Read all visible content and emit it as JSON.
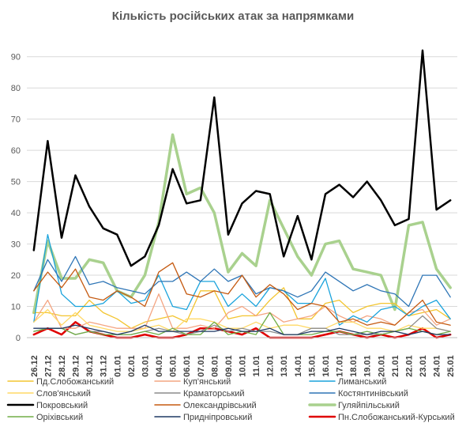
{
  "chart_data": {
    "type": "line",
    "title": "Кількість російських атак за напрямками",
    "xlabel": "",
    "ylabel": "",
    "ylim": [
      0,
      95
    ],
    "yticks": [
      0,
      10,
      20,
      30,
      40,
      50,
      60,
      70,
      80,
      90
    ],
    "grid": true,
    "legend_position": "bottom",
    "categories": [
      "26.12",
      "27.12",
      "28.12",
      "29.12",
      "30.12",
      "31.12",
      "01.01",
      "02.01",
      "03.01",
      "04.01",
      "05.01",
      "06.01",
      "07.01",
      "08.01",
      "09.01",
      "10.01",
      "11.01",
      "12.01",
      "13.01",
      "14.01",
      "15.01",
      "16.01",
      "17.01",
      "18.01",
      "19.01",
      "20.01",
      "21.01",
      "22.01",
      "23.01",
      "24.01",
      "25.01"
    ],
    "series": [
      {
        "name": "Пд.Слобожанський",
        "color": "#f3c530",
        "width": 1.3,
        "values": [
          8,
          8,
          7,
          7,
          12,
          8,
          6,
          3,
          5,
          6,
          7,
          5,
          15,
          15,
          6,
          7,
          7,
          12,
          16,
          6,
          6,
          11,
          12,
          8,
          10,
          11,
          11,
          7,
          8,
          9,
          6
        ]
      },
      {
        "name": "Куп'янський",
        "color": "#f4a582",
        "width": 1.3,
        "values": [
          5,
          12,
          3,
          3,
          5,
          4,
          3,
          3,
          3,
          14,
          3,
          3,
          4,
          3,
          8,
          10,
          7,
          8,
          5,
          6,
          7,
          10,
          7,
          5,
          7,
          6,
          4,
          8,
          9,
          4,
          6
        ]
      },
      {
        "name": "Лиманський",
        "color": "#1aa3dc",
        "width": 1.3,
        "values": [
          5,
          33,
          14,
          10,
          10,
          11,
          15,
          11,
          12,
          20,
          10,
          9,
          18,
          18,
          10,
          14,
          10,
          16,
          15,
          11,
          11,
          19,
          4,
          7,
          5,
          9,
          10,
          7,
          10,
          12,
          6
        ]
      },
      {
        "name": "Слов'янський",
        "color": "#ffd966",
        "width": 1.3,
        "values": [
          5,
          9,
          4,
          8,
          4,
          3,
          2,
          2,
          3,
          4,
          2,
          6,
          6,
          5,
          3,
          3,
          5,
          3,
          4,
          4,
          3,
          3,
          5,
          5,
          3,
          3,
          2,
          4,
          3,
          3,
          2
        ]
      },
      {
        "name": "Краматорський",
        "color": "#8c8c8c",
        "width": 1.3,
        "values": [
          2,
          3,
          3,
          1,
          2,
          2,
          1,
          1,
          2,
          3,
          2,
          1,
          2,
          4,
          2,
          3,
          2,
          2,
          1,
          1,
          3,
          3,
          1,
          1,
          1,
          1,
          2,
          3,
          7,
          3,
          2
        ]
      },
      {
        "name": "Костянтинівський",
        "color": "#2e75b6",
        "width": 1.3,
        "values": [
          15,
          25,
          18,
          26,
          17,
          18,
          16,
          15,
          14,
          18,
          18,
          21,
          18,
          22,
          18,
          20,
          14,
          16,
          15,
          13,
          15,
          21,
          18,
          15,
          17,
          15,
          14,
          10,
          20,
          20,
          13
        ]
      },
      {
        "name": "Покровський",
        "color": "#000000",
        "width": 2.5,
        "values": [
          28,
          63,
          32,
          52,
          42,
          35,
          33,
          23,
          26,
          36,
          54,
          43,
          44,
          77,
          33,
          43,
          47,
          46,
          26,
          39,
          25,
          46,
          49,
          45,
          50,
          44,
          36,
          38,
          92,
          41,
          44
        ]
      },
      {
        "name": "Олександрівський",
        "color": "#c55a11",
        "width": 1.3,
        "values": [
          15,
          21,
          16,
          22,
          13,
          12,
          15,
          13,
          10,
          21,
          24,
          14,
          13,
          15,
          14,
          20,
          13,
          17,
          14,
          9,
          11,
          10,
          5,
          6,
          4,
          5,
          4,
          8,
          12,
          5,
          4
        ]
      },
      {
        "name": "Гуляйпільський",
        "color": "#a9d18e",
        "width": 3.5,
        "values": [
          8,
          31,
          19,
          19,
          25,
          24,
          15,
          13,
          20,
          37,
          65,
          46,
          48,
          40,
          21,
          27,
          23,
          44,
          35,
          26,
          20,
          30,
          31,
          22,
          21,
          20,
          9,
          36,
          37,
          22,
          16
        ]
      },
      {
        "name": "Оріхівський",
        "color": "#70ad47",
        "width": 1.3,
        "values": [
          2,
          3,
          3,
          1,
          2,
          1,
          1,
          1,
          2,
          1,
          3,
          1,
          1,
          5,
          1,
          2,
          1,
          8,
          1,
          1,
          1,
          2,
          2,
          1,
          2,
          1,
          2,
          3,
          2,
          1,
          2
        ]
      },
      {
        "name": "Придніпровський",
        "color": "#1f3864",
        "width": 1.3,
        "values": [
          3,
          3,
          3,
          4,
          3,
          2,
          1,
          2,
          4,
          2,
          2,
          2,
          2,
          2,
          3,
          2,
          2,
          3,
          1,
          1,
          2,
          2,
          3,
          2,
          1,
          2,
          2,
          1,
          2,
          1,
          1
        ]
      },
      {
        "name": "Пн.Слобожанський-Курський",
        "color": "#e00000",
        "width": 2.5,
        "values": [
          1,
          3,
          1,
          5,
          2,
          1,
          0,
          0,
          1,
          0,
          0,
          1,
          3,
          3,
          2,
          1,
          3,
          0,
          0,
          0,
          0,
          1,
          2,
          1,
          0,
          1,
          0,
          1,
          3,
          0,
          1
        ]
      }
    ]
  }
}
